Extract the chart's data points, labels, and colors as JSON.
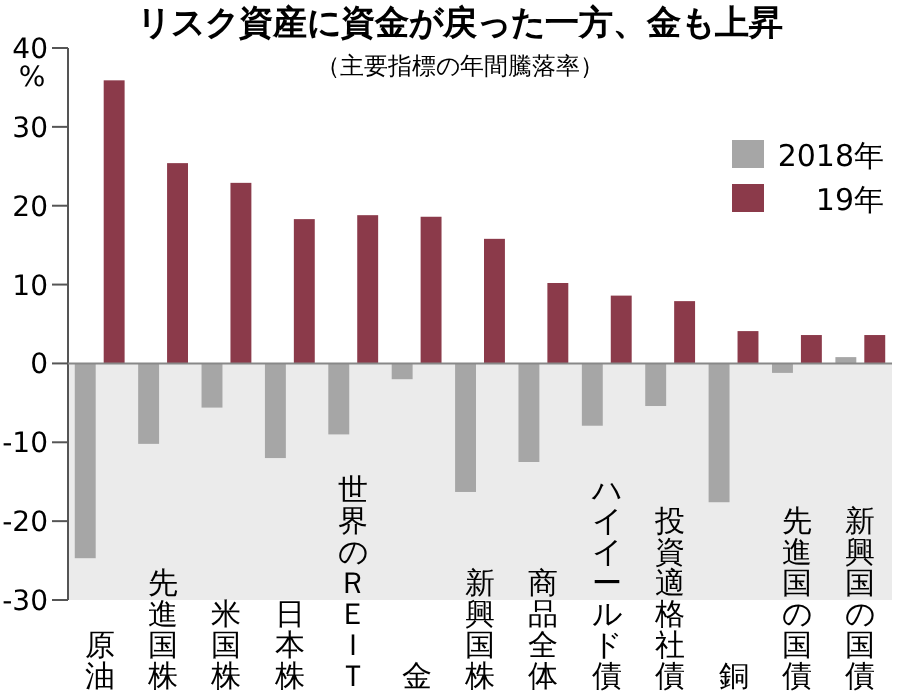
{
  "chart_data": {
    "type": "bar",
    "title": "リスク資産に資金が戻った一方、金も上昇",
    "subtitle": "（主要指標の年間騰落率）",
    "ylabel": "%",
    "categories": [
      "原油",
      "先進国株",
      "米国株",
      "日本株",
      "世界のＲＥＩＴ",
      "金",
      "新興国株",
      "商品全体",
      "ハイイールド債",
      "投資適格社債",
      "銅",
      "先進国の国債",
      "新興国の国債"
    ],
    "series": [
      {
        "name": "2018年",
        "color": "#a6a6a6",
        "values": [
          -24.7,
          -10.2,
          -5.6,
          -12,
          -9,
          -2,
          -16.3,
          -12.5,
          -7.9,
          -5.4,
          -17.6,
          -1.2,
          0.8
        ]
      },
      {
        "name": "19年",
        "color": "#8b3a4a",
        "values": [
          35.9,
          25.4,
          22.9,
          18.3,
          18.8,
          18.6,
          15.8,
          10.2,
          8.6,
          7.9,
          4.1,
          3.6,
          3.6
        ]
      }
    ],
    "ylim": [
      -30,
      40
    ],
    "yticks": [
      -30,
      -20,
      -10,
      0,
      10,
      20,
      30,
      40
    ],
    "bands": [
      {
        "axis": "y",
        "from": -30,
        "to": 0,
        "color": "#ebebeb"
      }
    ],
    "legend": "top right"
  }
}
